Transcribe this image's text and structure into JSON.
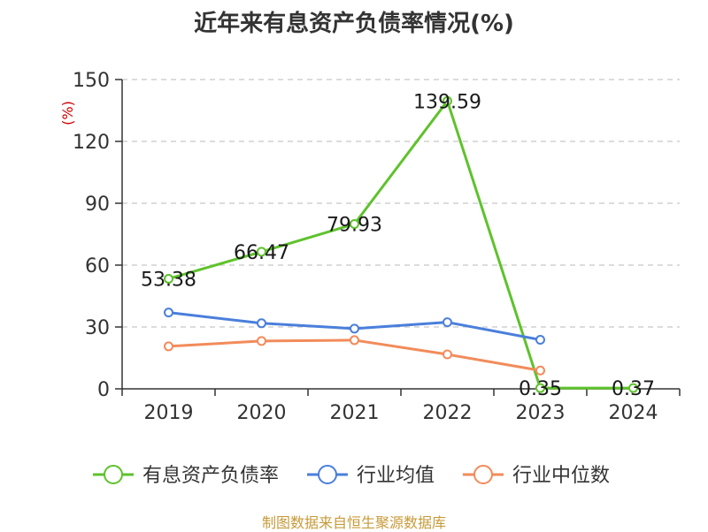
{
  "chart_data": {
    "type": "line",
    "title": "近年来有息资产负债率情况(%)",
    "ylabel": "(%)",
    "categories": [
      "2019",
      "2020",
      "2021",
      "2022",
      "2023",
      "2024"
    ],
    "ylim": [
      0,
      150
    ],
    "yticks": [
      0,
      30,
      60,
      90,
      120,
      150
    ],
    "grid": true,
    "legend_position": "bottom",
    "series": [
      {
        "name": "有息资产负债率",
        "color": "#5ec22c",
        "values": [
          53.38,
          66.47,
          79.93,
          139.59,
          0.35,
          0.37
        ],
        "labels": [
          "53.38",
          "66.47",
          "79.93",
          "139.59",
          "0.35",
          "0.37"
        ]
      },
      {
        "name": "行业均值",
        "color": "#4a7fdb",
        "values": [
          37.0,
          31.8,
          29.2,
          32.3,
          23.8,
          null
        ]
      },
      {
        "name": "行业中位数",
        "color": "#f28b5a",
        "values": [
          20.6,
          23.2,
          23.6,
          16.7,
          8.9,
          null
        ]
      }
    ]
  },
  "source_note": "制图数据来自恒生聚源数据库"
}
